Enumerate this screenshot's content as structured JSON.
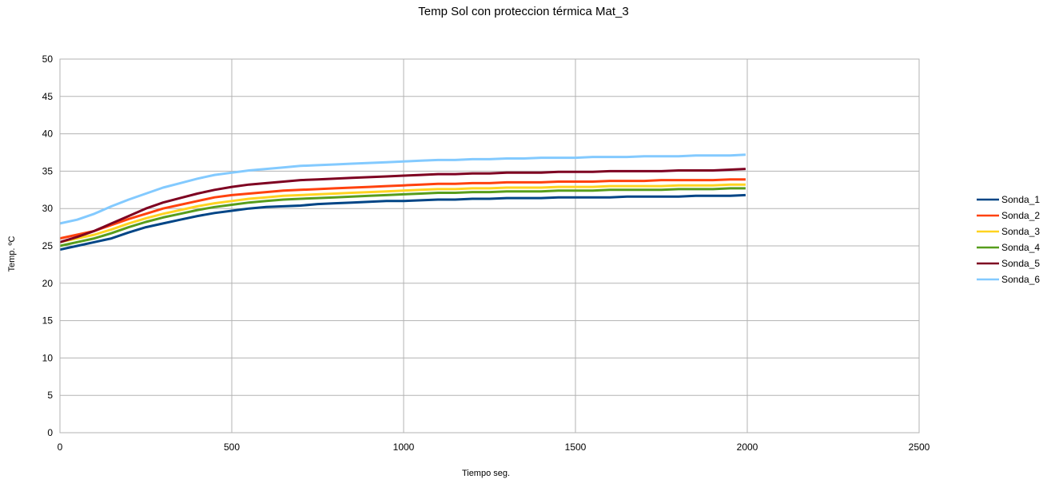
{
  "chart_data": {
    "type": "line",
    "title": "Temp Sol con proteccion térmica Mat_3",
    "xlabel": "Tiempo seg.",
    "ylabel": "Temp. ºC",
    "xlim": [
      0,
      2500
    ],
    "ylim": [
      0,
      50
    ],
    "x_ticks": [
      "0",
      "500",
      "1000",
      "1500",
      "2000",
      "2500"
    ],
    "y_ticks": [
      "0",
      "5",
      "10",
      "15",
      "20",
      "25",
      "30",
      "35",
      "40",
      "45",
      "50"
    ],
    "grid": true,
    "legend_position": "right",
    "x": [
      0,
      50,
      100,
      150,
      200,
      250,
      300,
      350,
      400,
      450,
      500,
      550,
      600,
      650,
      700,
      750,
      800,
      850,
      900,
      950,
      1000,
      1050,
      1100,
      1150,
      1200,
      1250,
      1300,
      1350,
      1400,
      1450,
      1500,
      1550,
      1600,
      1650,
      1700,
      1750,
      1800,
      1850,
      1900,
      1950,
      1995
    ],
    "series": [
      {
        "name": "Sonda_1",
        "color": "#004586",
        "values": [
          24.5,
          25.0,
          25.5,
          26.0,
          26.8,
          27.5,
          28.0,
          28.5,
          29.0,
          29.4,
          29.7,
          30.0,
          30.2,
          30.3,
          30.4,
          30.6,
          30.7,
          30.8,
          30.9,
          31.0,
          31.0,
          31.1,
          31.2,
          31.2,
          31.3,
          31.3,
          31.4,
          31.4,
          31.4,
          31.5,
          31.5,
          31.5,
          31.5,
          31.6,
          31.6,
          31.6,
          31.6,
          31.7,
          31.7,
          31.7,
          31.8
        ]
      },
      {
        "name": "Sonda_2",
        "color": "#ff420e",
        "values": [
          26.0,
          26.5,
          27.0,
          27.8,
          28.6,
          29.3,
          30.0,
          30.5,
          31.0,
          31.5,
          31.8,
          32.0,
          32.2,
          32.4,
          32.5,
          32.6,
          32.7,
          32.8,
          32.9,
          33.0,
          33.1,
          33.2,
          33.3,
          33.3,
          33.4,
          33.4,
          33.5,
          33.5,
          33.5,
          33.6,
          33.6,
          33.6,
          33.7,
          33.7,
          33.7,
          33.8,
          33.8,
          33.8,
          33.8,
          33.9,
          33.9
        ]
      },
      {
        "name": "Sonda_3",
        "color": "#ffd320",
        "values": [
          25.5,
          26.0,
          26.5,
          27.2,
          28.0,
          28.7,
          29.3,
          29.8,
          30.3,
          30.7,
          31.0,
          31.3,
          31.5,
          31.7,
          31.8,
          31.9,
          32.0,
          32.1,
          32.2,
          32.3,
          32.4,
          32.5,
          32.6,
          32.6,
          32.7,
          32.7,
          32.8,
          32.8,
          32.8,
          32.9,
          32.9,
          32.9,
          33.0,
          33.0,
          33.0,
          33.0,
          33.1,
          33.1,
          33.1,
          33.2,
          33.2
        ]
      },
      {
        "name": "Sonda_4",
        "color": "#579d1c",
        "values": [
          25.0,
          25.5,
          26.0,
          26.7,
          27.5,
          28.2,
          28.8,
          29.3,
          29.8,
          30.2,
          30.5,
          30.8,
          31.0,
          31.2,
          31.3,
          31.4,
          31.5,
          31.6,
          31.7,
          31.8,
          31.9,
          32.0,
          32.1,
          32.1,
          32.2,
          32.2,
          32.3,
          32.3,
          32.3,
          32.4,
          32.4,
          32.4,
          32.5,
          32.5,
          32.5,
          32.5,
          32.6,
          32.6,
          32.6,
          32.7,
          32.7
        ]
      },
      {
        "name": "Sonda_5",
        "color": "#7e0021",
        "values": [
          25.5,
          26.2,
          27.0,
          28.0,
          29.0,
          30.0,
          30.8,
          31.4,
          32.0,
          32.5,
          32.9,
          33.2,
          33.4,
          33.6,
          33.8,
          33.9,
          34.0,
          34.1,
          34.2,
          34.3,
          34.4,
          34.5,
          34.6,
          34.6,
          34.7,
          34.7,
          34.8,
          34.8,
          34.8,
          34.9,
          34.9,
          34.9,
          35.0,
          35.0,
          35.0,
          35.0,
          35.1,
          35.1,
          35.1,
          35.2,
          35.3
        ]
      },
      {
        "name": "Sonda_6",
        "color": "#83caff",
        "values": [
          28.0,
          28.5,
          29.3,
          30.3,
          31.2,
          32.0,
          32.8,
          33.4,
          34.0,
          34.5,
          34.8,
          35.1,
          35.3,
          35.5,
          35.7,
          35.8,
          35.9,
          36.0,
          36.1,
          36.2,
          36.3,
          36.4,
          36.5,
          36.5,
          36.6,
          36.6,
          36.7,
          36.7,
          36.8,
          36.8,
          36.8,
          36.9,
          36.9,
          36.9,
          37.0,
          37.0,
          37.0,
          37.1,
          37.1,
          37.1,
          37.2
        ]
      }
    ]
  }
}
